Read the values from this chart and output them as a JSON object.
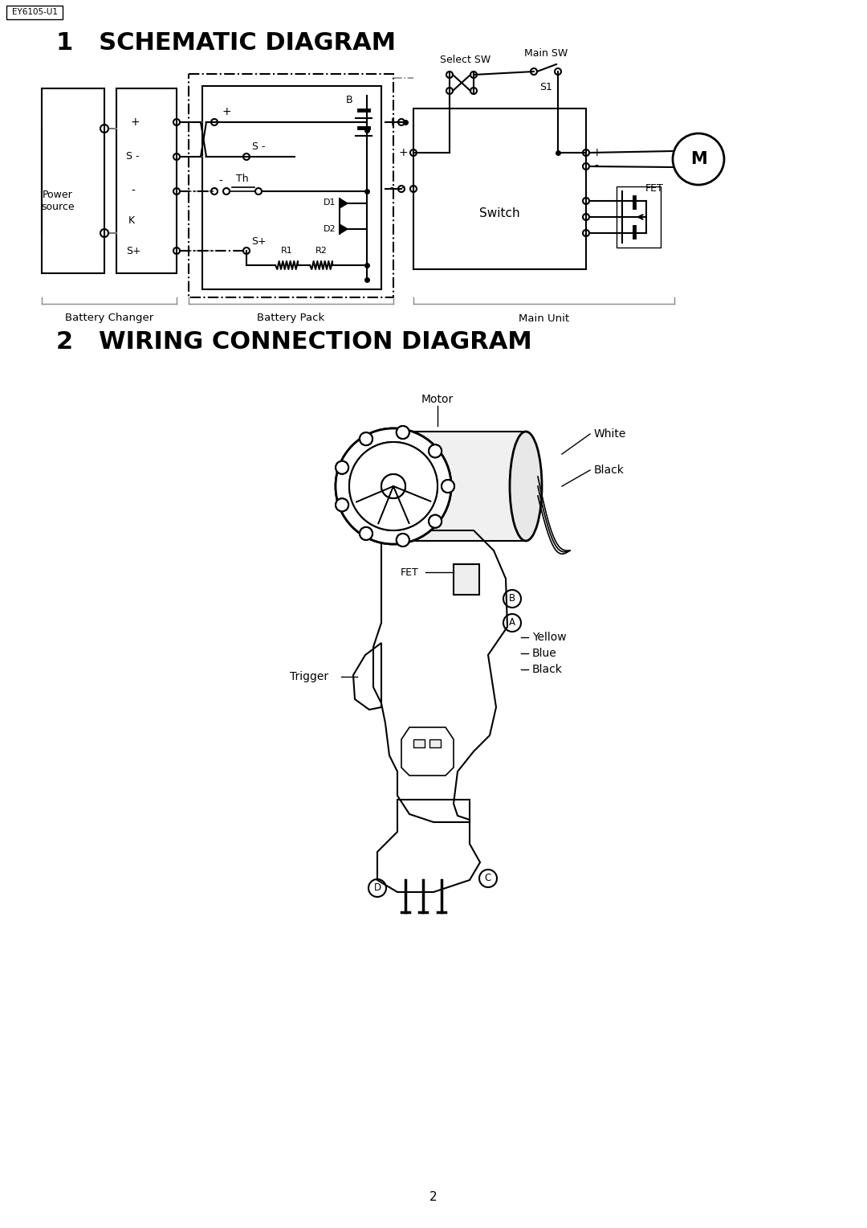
{
  "title1": "1   SCHEMATIC DIAGRAM",
  "title2": "2   WIRING CONNECTION DIAGRAM",
  "model": "EY6105-U1",
  "bg_color": "#ffffff",
  "page_number": "2",
  "battery_changer": "Battery Changer",
  "battery_pack": "Battery Pack",
  "main_unit": "Main Unit",
  "select_sw": "Select SW",
  "main_sw": "Main SW",
  "switch_label": "Switch",
  "s1": "S1",
  "B_label": "B",
  "Th_label": "Th",
  "D1_label": "D1",
  "D2_label": "D2",
  "R1_label": "R1",
  "R2_label": "R2",
  "K_label": "K",
  "FET_label": "FET",
  "M_label": "M",
  "power_source": "Power\nsource",
  "motor_label": "Motor",
  "white_label": "White",
  "black1_label": "Black",
  "fet2_label": "FET",
  "B_circle": "B",
  "A_circle": "A",
  "yellow_label": "Yellow",
  "blue_label": "Blue",
  "black2_label": "Black",
  "trigger_label": "Trigger",
  "C_circle": "C",
  "D_circle": "D"
}
